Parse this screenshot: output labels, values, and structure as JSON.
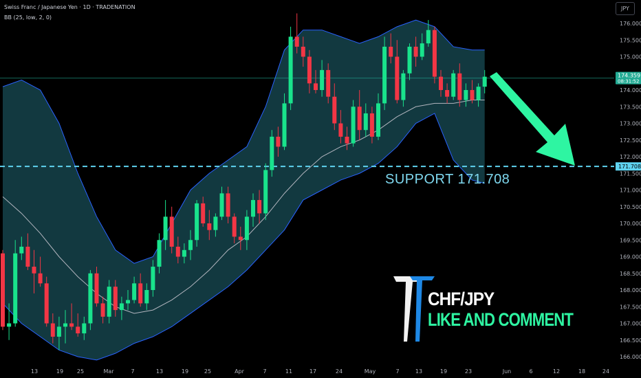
{
  "header": {
    "title": "Swiss Franc / Japanese Yen · 1D · TRADENATION",
    "indicator": "BB (25, low, 2, 0)"
  },
  "currency_button": "JPY",
  "labels": {
    "current_price": "174.359",
    "countdown": "08:31:52",
    "support_axis": "171.708",
    "support_text": "SUPPORT  171.708",
    "pair": "CHF/JPY",
    "cta": "LIKE AND COMMENT"
  },
  "colors": {
    "up": "#22ab94",
    "up_bright": "#19e38c",
    "down": "#f23645",
    "band_fill": "#133c43",
    "band_line": "#2962ff",
    "basis": "#b2b5be",
    "support": "#5fd3f0",
    "arrow": "#2ef5a2",
    "price_line": "#22ab94"
  },
  "chart_data": {
    "type": "candlestick",
    "symbol": "CHF/JPY",
    "timeframe": "1D",
    "ylim": [
      165.9,
      176.4
    ],
    "y_ticks": [
      "166.000",
      "166.500",
      "167.000",
      "167.500",
      "168.000",
      "168.500",
      "169.000",
      "169.500",
      "170.000",
      "170.500",
      "171.000",
      "171.500",
      "172.000",
      "172.500",
      "173.000",
      "173.500",
      "174.000",
      "174.500",
      "175.000",
      "175.500",
      "176.000"
    ],
    "x_ticks": [
      "13",
      "19",
      "25",
      "Mar",
      "7",
      "13",
      "19",
      "25",
      "Apr",
      "7",
      "11",
      "17",
      "24",
      "May",
      "7",
      "13",
      "19",
      "23",
      "Jun",
      "6",
      "12",
      "18",
      "24"
    ],
    "support_level": 171.708,
    "last_price": 174.359,
    "candles": [
      [
        169.1,
        169.2,
        166.8,
        166.9
      ],
      [
        166.9,
        167.6,
        166.5,
        167.0
      ],
      [
        167.0,
        169.5,
        166.9,
        169.1
      ],
      [
        169.1,
        169.6,
        168.9,
        169.3
      ],
      [
        169.3,
        169.7,
        168.6,
        168.7
      ],
      [
        168.7,
        169.2,
        167.9,
        168.5
      ],
      [
        168.5,
        169.0,
        168.1,
        168.2
      ],
      [
        168.2,
        168.4,
        166.9,
        167.0
      ],
      [
        167.0,
        167.3,
        166.4,
        166.6
      ],
      [
        166.6,
        167.2,
        166.2,
        166.9
      ],
      [
        166.9,
        167.4,
        166.4,
        167.0
      ],
      [
        167.0,
        167.6,
        166.8,
        166.9
      ],
      [
        166.9,
        167.3,
        166.6,
        166.7
      ],
      [
        166.7,
        167.2,
        166.5,
        167.0
      ],
      [
        167.0,
        168.6,
        166.8,
        168.5
      ],
      [
        168.5,
        168.7,
        167.5,
        167.6
      ],
      [
        167.6,
        167.8,
        167.0,
        167.2
      ],
      [
        167.2,
        168.3,
        167.0,
        168.1
      ],
      [
        168.1,
        168.3,
        167.2,
        167.4
      ],
      [
        167.4,
        167.8,
        167.1,
        167.6
      ],
      [
        167.6,
        168.0,
        167.4,
        167.7
      ],
      [
        167.7,
        168.4,
        167.6,
        168.2
      ],
      [
        168.2,
        168.5,
        167.5,
        167.6
      ],
      [
        167.6,
        168.2,
        167.4,
        168.0
      ],
      [
        168.0,
        168.9,
        167.8,
        168.7
      ],
      [
        168.7,
        169.7,
        168.5,
        169.5
      ],
      [
        169.5,
        170.7,
        169.2,
        170.2
      ],
      [
        170.2,
        170.5,
        169.1,
        169.3
      ],
      [
        169.3,
        169.6,
        168.8,
        169.0
      ],
      [
        169.0,
        169.4,
        168.8,
        169.2
      ],
      [
        169.2,
        169.8,
        168.9,
        169.5
      ],
      [
        169.5,
        170.7,
        169.3,
        170.6
      ],
      [
        170.6,
        170.8,
        169.9,
        170.0
      ],
      [
        170.0,
        170.4,
        169.5,
        169.8
      ],
      [
        169.8,
        170.3,
        169.6,
        170.2
      ],
      [
        170.2,
        171.1,
        170.1,
        170.9
      ],
      [
        170.9,
        171.1,
        170.0,
        170.2
      ],
      [
        170.2,
        170.3,
        169.4,
        169.6
      ],
      [
        169.6,
        169.9,
        169.2,
        169.5
      ],
      [
        169.5,
        170.4,
        169.2,
        170.2
      ],
      [
        170.2,
        170.9,
        169.9,
        170.7
      ],
      [
        170.7,
        171.0,
        170.0,
        170.3
      ],
      [
        170.3,
        171.8,
        170.1,
        171.6
      ],
      [
        171.6,
        172.8,
        171.4,
        172.6
      ],
      [
        172.6,
        172.9,
        172.0,
        172.3
      ],
      [
        172.3,
        173.9,
        172.2,
        173.6
      ],
      [
        173.6,
        175.9,
        173.4,
        175.6
      ],
      [
        175.6,
        176.3,
        175.1,
        175.3
      ],
      [
        175.3,
        175.6,
        174.7,
        175.0
      ],
      [
        175.0,
        175.2,
        173.9,
        174.2
      ],
      [
        174.2,
        174.6,
        173.9,
        174.0
      ],
      [
        174.0,
        174.9,
        173.8,
        174.6
      ],
      [
        174.6,
        174.8,
        173.6,
        173.8
      ],
      [
        173.8,
        174.2,
        172.8,
        173.0
      ],
      [
        173.0,
        173.4,
        172.4,
        172.6
      ],
      [
        172.6,
        172.9,
        172.2,
        172.4
      ],
      [
        172.4,
        173.7,
        172.3,
        173.5
      ],
      [
        173.5,
        174.0,
        172.5,
        172.8
      ],
      [
        172.8,
        173.6,
        172.6,
        173.3
      ],
      [
        173.3,
        173.5,
        172.4,
        172.6
      ],
      [
        172.6,
        173.9,
        172.5,
        173.6
      ],
      [
        173.6,
        175.6,
        173.4,
        175.3
      ],
      [
        175.3,
        175.7,
        174.8,
        175.0
      ],
      [
        175.0,
        175.5,
        173.6,
        173.7
      ],
      [
        173.7,
        174.6,
        173.5,
        174.5
      ],
      [
        174.5,
        175.4,
        174.3,
        175.3
      ],
      [
        175.3,
        175.6,
        174.7,
        175.0
      ],
      [
        175.0,
        175.7,
        174.9,
        175.4
      ],
      [
        175.4,
        176.1,
        175.3,
        175.8
      ],
      [
        175.8,
        175.9,
        174.2,
        174.4
      ],
      [
        174.4,
        174.6,
        173.8,
        174.0
      ],
      [
        174.0,
        174.2,
        173.6,
        173.8
      ],
      [
        173.8,
        174.6,
        173.7,
        174.5
      ],
      [
        174.5,
        174.8,
        173.5,
        173.7
      ],
      [
        173.7,
        174.2,
        173.5,
        174.0
      ],
      [
        174.0,
        174.3,
        173.6,
        173.7
      ],
      [
        173.7,
        174.2,
        173.5,
        174.1
      ],
      [
        174.1,
        174.6,
        173.9,
        174.4
      ]
    ],
    "bb_upper": [
      [
        0,
        174.1
      ],
      [
        3,
        174.3
      ],
      [
        6,
        174.0
      ],
      [
        9,
        173.0
      ],
      [
        12,
        171.5
      ],
      [
        15,
        170.2
      ],
      [
        18,
        169.2
      ],
      [
        21,
        168.8
      ],
      [
        24,
        169.0
      ],
      [
        27,
        170.0
      ],
      [
        30,
        171.0
      ],
      [
        33,
        171.5
      ],
      [
        36,
        171.9
      ],
      [
        39,
        172.3
      ],
      [
        42,
        173.5
      ],
      [
        45,
        175.2
      ],
      [
        48,
        175.8
      ],
      [
        51,
        175.8
      ],
      [
        54,
        175.6
      ],
      [
        57,
        175.4
      ],
      [
        60,
        175.6
      ],
      [
        63,
        175.9
      ],
      [
        66,
        176.1
      ],
      [
        69,
        175.9
      ],
      [
        72,
        175.3
      ],
      [
        75,
        175.2
      ],
      [
        77,
        175.2
      ]
    ],
    "bb_basis": [
      [
        0,
        170.8
      ],
      [
        3,
        170.3
      ],
      [
        6,
        169.7
      ],
      [
        9,
        169.0
      ],
      [
        12,
        168.4
      ],
      [
        15,
        167.9
      ],
      [
        18,
        167.5
      ],
      [
        21,
        167.3
      ],
      [
        24,
        167.4
      ],
      [
        27,
        167.7
      ],
      [
        30,
        168.1
      ],
      [
        33,
        168.6
      ],
      [
        36,
        169.2
      ],
      [
        39,
        169.6
      ],
      [
        42,
        170.2
      ],
      [
        45,
        170.9
      ],
      [
        48,
        171.5
      ],
      [
        51,
        172.0
      ],
      [
        54,
        172.3
      ],
      [
        57,
        172.5
      ],
      [
        60,
        172.8
      ],
      [
        63,
        173.2
      ],
      [
        66,
        173.5
      ],
      [
        69,
        173.6
      ],
      [
        72,
        173.6
      ],
      [
        75,
        173.7
      ],
      [
        77,
        173.7
      ]
    ],
    "bb_lower": [
      [
        0,
        167.6
      ],
      [
        3,
        167.0
      ],
      [
        6,
        166.6
      ],
      [
        9,
        166.2
      ],
      [
        12,
        166.0
      ],
      [
        15,
        165.9
      ],
      [
        18,
        166.1
      ],
      [
        21,
        166.4
      ],
      [
        24,
        166.6
      ],
      [
        27,
        166.9
      ],
      [
        30,
        167.3
      ],
      [
        33,
        167.7
      ],
      [
        36,
        168.1
      ],
      [
        39,
        168.6
      ],
      [
        42,
        169.2
      ],
      [
        45,
        169.8
      ],
      [
        48,
        170.7
      ],
      [
        51,
        171.0
      ],
      [
        54,
        171.3
      ],
      [
        57,
        171.5
      ],
      [
        60,
        171.8
      ],
      [
        63,
        172.3
      ],
      [
        66,
        173.0
      ],
      [
        69,
        173.3
      ],
      [
        72,
        171.9
      ],
      [
        75,
        171.3
      ],
      [
        77,
        171.2
      ]
    ]
  }
}
